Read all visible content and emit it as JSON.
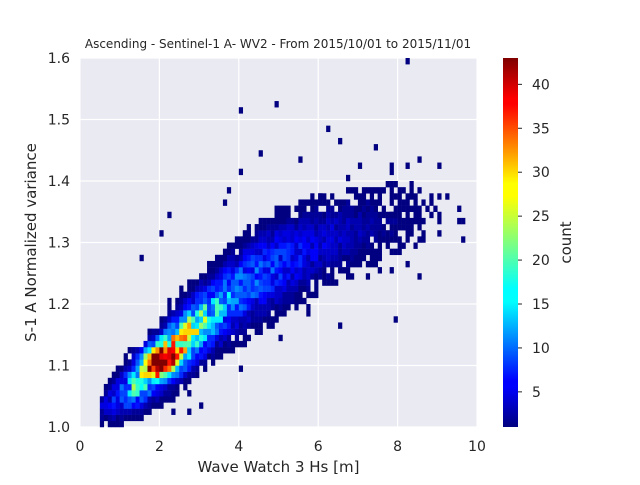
{
  "chart_data": {
    "type": "heatmap",
    "title": "Ascending - Sentinel-1 A- WV2 - From 2015/10/01 to 2015/11/01",
    "xlabel": "Wave Watch 3 Hs [m]",
    "ylabel": "S-1 A Normalized variance",
    "xlim": [
      0,
      10
    ],
    "ylim": [
      1.0,
      1.6
    ],
    "xticks": [
      0,
      2,
      4,
      6,
      8,
      10
    ],
    "xtick_labels": [
      "0",
      "2",
      "4",
      "6",
      "8",
      "10"
    ],
    "yticks": [
      1.0,
      1.1,
      1.2,
      1.3,
      1.4,
      1.5,
      1.6
    ],
    "ytick_labels": [
      "1.0",
      "1.1",
      "1.2",
      "1.3",
      "1.4",
      "1.5",
      "1.6"
    ],
    "grid": true,
    "colorbar": {
      "label": "count",
      "colormap": "jet",
      "range": [
        1,
        43
      ],
      "ticks": [
        5,
        10,
        15,
        20,
        25,
        30,
        35,
        40
      ],
      "tick_labels": [
        "5",
        "10",
        "15",
        "20",
        "25",
        "30",
        "35",
        "40"
      ]
    },
    "bin_size": {
      "x": 0.1,
      "y": 0.01
    },
    "hotspot": {
      "x": 2.0,
      "y": 1.11,
      "count": 43
    },
    "trend": {
      "hs": [
        0.6,
        1.0,
        1.5,
        2.0,
        2.5,
        3.0,
        3.5,
        4.0,
        4.5,
        5.0,
        5.5,
        6.0,
        6.5,
        7.0,
        8.0,
        9.0,
        10.0
      ],
      "nv": [
        1.035,
        1.05,
        1.075,
        1.105,
        1.135,
        1.165,
        1.195,
        1.22,
        1.245,
        1.265,
        1.28,
        1.295,
        1.31,
        1.32,
        1.34,
        1.36,
        1.38
      ]
    },
    "outliers": [
      {
        "x": 8.25,
        "y": 1.595
      },
      {
        "x": 4.0,
        "y": 1.51
      },
      {
        "x": 4.95,
        "y": 1.52
      },
      {
        "x": 6.2,
        "y": 1.48
      },
      {
        "x": 7.4,
        "y": 1.46
      },
      {
        "x": 8.5,
        "y": 1.44
      },
      {
        "x": 9.0,
        "y": 1.43
      },
      {
        "x": 9.5,
        "y": 1.35
      },
      {
        "x": 9.6,
        "y": 1.33
      },
      {
        "x": 9.7,
        "y": 1.3
      },
      {
        "x": 10.0,
        "y": 1.27
      },
      {
        "x": 9.0,
        "y": 1.33
      },
      {
        "x": 8.1,
        "y": 1.28
      },
      {
        "x": 7.8,
        "y": 1.34
      },
      {
        "x": 7.0,
        "y": 1.43
      },
      {
        "x": 8.0,
        "y": 1.39
      },
      {
        "x": 6.6,
        "y": 1.47
      },
      {
        "x": 6.0,
        "y": 1.38
      },
      {
        "x": 4.5,
        "y": 1.45
      },
      {
        "x": 3.8,
        "y": 1.39
      },
      {
        "x": 3.6,
        "y": 1.36
      },
      {
        "x": 2.3,
        "y": 1.34
      },
      {
        "x": 2.0,
        "y": 1.31
      },
      {
        "x": 1.5,
        "y": 1.27
      },
      {
        "x": 7.9,
        "y": 1.18
      },
      {
        "x": 7.2,
        "y": 1.24
      },
      {
        "x": 6.5,
        "y": 1.17
      },
      {
        "x": 4.0,
        "y": 1.09
      },
      {
        "x": 3.0,
        "y": 1.03
      },
      {
        "x": 2.7,
        "y": 1.02
      },
      {
        "x": 2.4,
        "y": 1.025
      },
      {
        "x": 5.0,
        "y": 1.15
      },
      {
        "x": 4.1,
        "y": 1.42
      },
      {
        "x": 5.6,
        "y": 1.44
      },
      {
        "x": 8.6,
        "y": 1.24
      },
      {
        "x": 7.6,
        "y": 1.37
      }
    ]
  }
}
